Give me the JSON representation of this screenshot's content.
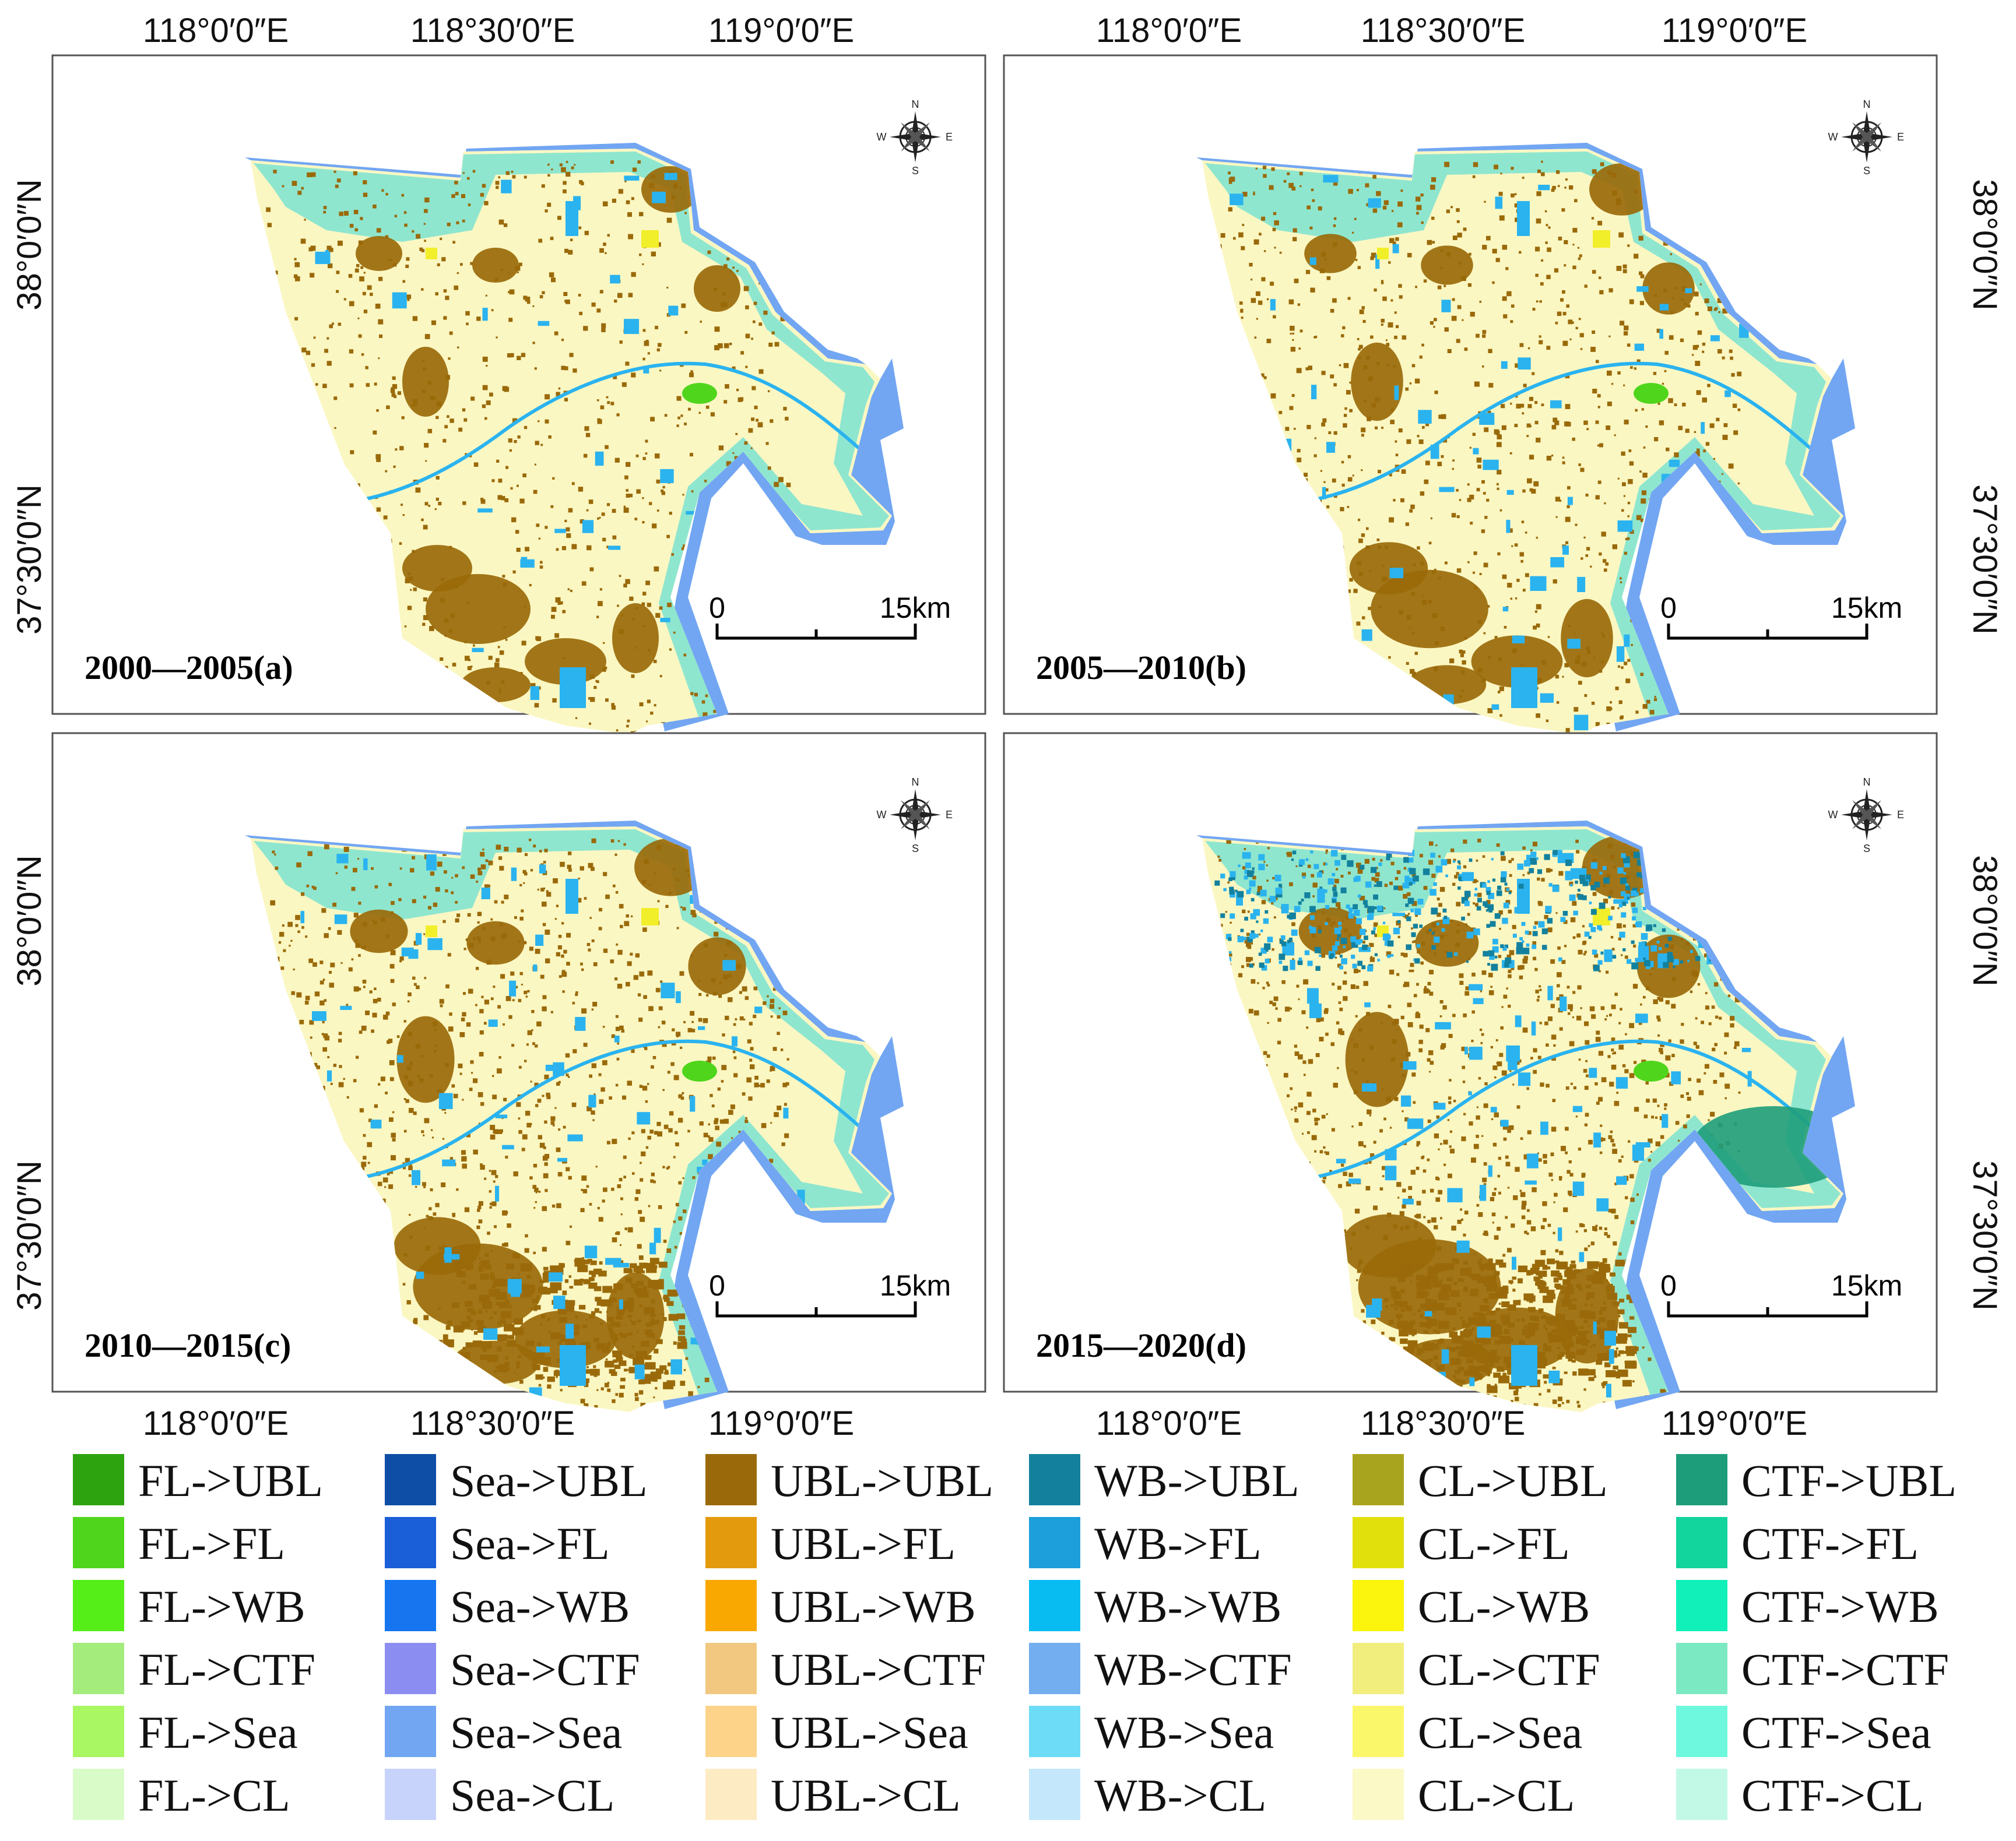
{
  "coords": {
    "top_lon": [
      "118°0′0″E",
      "118°30′0″E",
      "119°0′0″E"
    ],
    "bottom_lon": [
      "118°0′0″E",
      "118°30′0″E",
      "119°0′0″E"
    ],
    "lat": [
      "38°0′0″N",
      "37°30′0″N"
    ]
  },
  "panels": [
    {
      "label": "2000—2005(a)"
    },
    {
      "label": "2005—2010(b)"
    },
    {
      "label": "2010—2015(c)"
    },
    {
      "label": "2015—2020(d)"
    }
  ],
  "scale": {
    "start": "0",
    "end": "15km"
  },
  "compass": {
    "n": "N",
    "s": "S",
    "e": "E",
    "w": "W"
  },
  "colors": {
    "cropland": "#fbf7c3",
    "urban": "#9a6a0a",
    "water": "#2ab3ef",
    "sea": "#72a6f2",
    "coastal": "#8fe6cf",
    "forest": "#4fd61c",
    "yellow": "#f1ee2a",
    "dark_ctf": "#1e9d7b"
  },
  "legend": [
    [
      {
        "label": "FL->UBL",
        "color": "#2ea310"
      },
      {
        "label": "FL->FL",
        "color": "#4fd61c"
      },
      {
        "label": "FL->WB",
        "color": "#55ee18"
      },
      {
        "label": "FL->CTF",
        "color": "#a4ec7c"
      },
      {
        "label": "FL->Sea",
        "color": "#a8f763"
      },
      {
        "label": "FL->CL",
        "color": "#d9fbc7"
      }
    ],
    [
      {
        "label": "Sea->UBL",
        "color": "#0e4ea6"
      },
      {
        "label": "Sea->FL",
        "color": "#1a5ed8"
      },
      {
        "label": "Sea->WB",
        "color": "#1675ef"
      },
      {
        "label": "Sea->CTF",
        "color": "#8b8ef0"
      },
      {
        "label": "Sea->Sea",
        "color": "#72a6f2"
      },
      {
        "label": "Sea->CL",
        "color": "#c7d3fb"
      }
    ],
    [
      {
        "label": "UBL->UBL",
        "color": "#9a6a0a"
      },
      {
        "label": "UBL->FL",
        "color": "#e39a0c"
      },
      {
        "label": "UBL->WB",
        "color": "#f8a800"
      },
      {
        "label": "UBL->CTF",
        "color": "#f2c880"
      },
      {
        "label": "UBL->Sea",
        "color": "#fdd38a"
      },
      {
        "label": "UBL->CL",
        "color": "#fdebc4"
      }
    ],
    [
      {
        "label": "WB->UBL",
        "color": "#13819e"
      },
      {
        "label": "WB->FL",
        "color": "#1d9fdb"
      },
      {
        "label": "WB->WB",
        "color": "#08bcf2"
      },
      {
        "label": "WB->CTF",
        "color": "#72aef0"
      },
      {
        "label": "WB->Sea",
        "color": "#6ddcf6"
      },
      {
        "label": "WB->CL",
        "color": "#c4e7fb"
      }
    ],
    [
      {
        "label": "CL->UBL",
        "color": "#a9a41e"
      },
      {
        "label": "CL->FL",
        "color": "#e2e00c"
      },
      {
        "label": "CL->WB",
        "color": "#fbf40d"
      },
      {
        "label": "CL->CTF",
        "color": "#f1ee7d"
      },
      {
        "label": "CL->Sea",
        "color": "#fbf76a"
      },
      {
        "label": "CL->CL",
        "color": "#fbf9c6"
      }
    ],
    [
      {
        "label": "CTF->UBL",
        "color": "#1e9d7b"
      },
      {
        "label": "CTF->FL",
        "color": "#12d49d"
      },
      {
        "label": "CTF->WB",
        "color": "#10f0b8"
      },
      {
        "label": "CTF->CTF",
        "color": "#7be9c2"
      },
      {
        "label": "CTF->Sea",
        "color": "#6ef8de"
      },
      {
        "label": "CTF->CL",
        "color": "#c1f9e6"
      }
    ]
  ]
}
